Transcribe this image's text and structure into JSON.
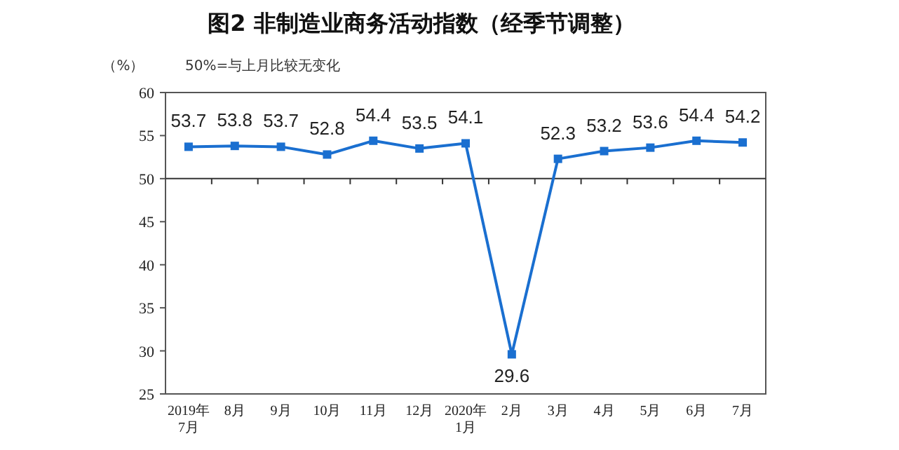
{
  "chart_data": {
    "type": "line",
    "title": "图2 非制造业商务活动指数（经季节调整）",
    "ylabel": "（%）",
    "annotations": [
      "50%=与上月比较无变化"
    ],
    "categories": [
      "2019年\n7月",
      "8月",
      "9月",
      "10月",
      "11月",
      "12月",
      "2020年\n1月",
      "2月",
      "3月",
      "4月",
      "5月",
      "6月",
      "7月"
    ],
    "series": [
      {
        "color": "#1a6fd0",
        "values": [
          53.7,
          53.8,
          53.7,
          52.8,
          54.4,
          53.5,
          54.1,
          29.6,
          52.3,
          53.2,
          53.6,
          54.4,
          54.2
        ]
      }
    ],
    "ylim": [
      25,
      60
    ],
    "yticks": [
      25,
      30,
      35,
      40,
      45,
      50,
      55,
      60
    ],
    "ref_lines": [
      {
        "axis": "y",
        "value": 50
      }
    ],
    "data_labels": true,
    "marker": "square",
    "line_style": "solid",
    "grid": false
  }
}
